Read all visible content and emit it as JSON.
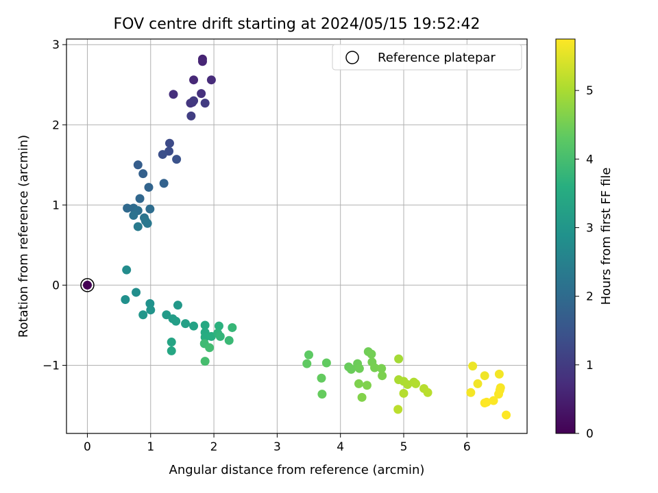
{
  "chart_data": {
    "type": "scatter",
    "title": "FOV centre drift starting at 2024/05/15 19:52:42",
    "xlabel": "Angular distance from reference (arcmin)",
    "ylabel": "Rotation from reference (arcmin)",
    "xlim": [
      -0.33,
      6.95
    ],
    "ylim": [
      -1.85,
      3.07
    ],
    "xticks": [
      "0",
      "1",
      "2",
      "3",
      "4",
      "5",
      "6"
    ],
    "yticks": [
      "−1",
      "0",
      "1",
      "2",
      "3"
    ],
    "grid": true,
    "colormap": "viridis",
    "colorbar": {
      "label": "Hours from first FF file",
      "range": [
        0,
        5.75
      ],
      "ticks": [
        "0",
        "1",
        "2",
        "3",
        "4",
        "5"
      ]
    },
    "legend": {
      "location": "top-right",
      "entries": [
        "Reference platepar"
      ]
    },
    "reference_point": {
      "x": 0,
      "y": 0,
      "t": 0
    },
    "points": [
      {
        "x": 1.82,
        "y": 2.82,
        "t": 0.55
      },
      {
        "x": 1.82,
        "y": 2.79,
        "t": 0.6
      },
      {
        "x": 1.68,
        "y": 2.56,
        "t": 0.65
      },
      {
        "x": 1.96,
        "y": 2.56,
        "t": 0.7
      },
      {
        "x": 1.36,
        "y": 2.38,
        "t": 0.75
      },
      {
        "x": 1.8,
        "y": 2.39,
        "t": 0.8
      },
      {
        "x": 1.66,
        "y": 2.28,
        "t": 0.85
      },
      {
        "x": 1.63,
        "y": 2.27,
        "t": 0.9
      },
      {
        "x": 1.68,
        "y": 2.3,
        "t": 0.95
      },
      {
        "x": 1.86,
        "y": 2.27,
        "t": 1.0
      },
      {
        "x": 1.64,
        "y": 2.11,
        "t": 1.05
      },
      {
        "x": 1.3,
        "y": 1.77,
        "t": 1.3
      },
      {
        "x": 1.29,
        "y": 1.67,
        "t": 1.35
      },
      {
        "x": 1.19,
        "y": 1.63,
        "t": 1.4
      },
      {
        "x": 1.41,
        "y": 1.57,
        "t": 1.45
      },
      {
        "x": 0.8,
        "y": 1.5,
        "t": 1.7
      },
      {
        "x": 0.88,
        "y": 1.39,
        "t": 1.75
      },
      {
        "x": 1.21,
        "y": 1.27,
        "t": 1.8
      },
      {
        "x": 0.97,
        "y": 1.22,
        "t": 1.85
      },
      {
        "x": 0.83,
        "y": 1.08,
        "t": 1.9
      },
      {
        "x": 0.63,
        "y": 0.96,
        "t": 1.95
      },
      {
        "x": 0.73,
        "y": 0.96,
        "t": 2.0
      },
      {
        "x": 0.99,
        "y": 0.95,
        "t": 2.05
      },
      {
        "x": 0.8,
        "y": 0.93,
        "t": 2.1
      },
      {
        "x": 0.73,
        "y": 0.87,
        "t": 2.15
      },
      {
        "x": 0.9,
        "y": 0.84,
        "t": 2.2
      },
      {
        "x": 0.92,
        "y": 0.8,
        "t": 2.25
      },
      {
        "x": 0.95,
        "y": 0.77,
        "t": 2.3
      },
      {
        "x": 0.8,
        "y": 0.73,
        "t": 2.35
      },
      {
        "x": 0.62,
        "y": 0.19,
        "t": 2.75
      },
      {
        "x": 0.77,
        "y": -0.09,
        "t": 2.8
      },
      {
        "x": 0.6,
        "y": -0.18,
        "t": 2.85
      },
      {
        "x": 0.99,
        "y": -0.23,
        "t": 2.9
      },
      {
        "x": 1.0,
        "y": -0.31,
        "t": 2.95
      },
      {
        "x": 0.88,
        "y": -0.37,
        "t": 3.0
      },
      {
        "x": 1.43,
        "y": -0.25,
        "t": 3.05
      },
      {
        "x": 1.25,
        "y": -0.37,
        "t": 3.1
      },
      {
        "x": 1.35,
        "y": -0.42,
        "t": 3.15
      },
      {
        "x": 1.4,
        "y": -0.45,
        "t": 3.2
      },
      {
        "x": 1.55,
        "y": -0.48,
        "t": 3.25
      },
      {
        "x": 1.68,
        "y": -0.51,
        "t": 3.3
      },
      {
        "x": 1.33,
        "y": -0.71,
        "t": 3.35
      },
      {
        "x": 1.33,
        "y": -0.82,
        "t": 3.4
      },
      {
        "x": 1.86,
        "y": -0.5,
        "t": 3.45
      },
      {
        "x": 1.86,
        "y": -0.59,
        "t": 3.5
      },
      {
        "x": 1.86,
        "y": -0.65,
        "t": 3.55
      },
      {
        "x": 1.96,
        "y": -0.64,
        "t": 3.6
      },
      {
        "x": 2.08,
        "y": -0.51,
        "t": 3.65
      },
      {
        "x": 2.06,
        "y": -0.6,
        "t": 3.7
      },
      {
        "x": 2.1,
        "y": -0.64,
        "t": 3.75
      },
      {
        "x": 2.29,
        "y": -0.53,
        "t": 3.8
      },
      {
        "x": 2.24,
        "y": -0.69,
        "t": 3.85
      },
      {
        "x": 1.85,
        "y": -0.73,
        "t": 3.9
      },
      {
        "x": 1.93,
        "y": -0.78,
        "t": 3.95
      },
      {
        "x": 1.86,
        "y": -0.95,
        "t": 4.0
      },
      {
        "x": 3.5,
        "y": -0.87,
        "t": 4.3
      },
      {
        "x": 3.47,
        "y": -0.98,
        "t": 4.32
      },
      {
        "x": 3.78,
        "y": -0.97,
        "t": 4.34
      },
      {
        "x": 3.7,
        "y": -1.16,
        "t": 4.36
      },
      {
        "x": 3.71,
        "y": -1.36,
        "t": 4.38
      },
      {
        "x": 4.13,
        "y": -1.02,
        "t": 4.4
      },
      {
        "x": 4.17,
        "y": -1.05,
        "t": 4.42
      },
      {
        "x": 4.27,
        "y": -0.98,
        "t": 4.44
      },
      {
        "x": 4.3,
        "y": -1.04,
        "t": 4.46
      },
      {
        "x": 4.44,
        "y": -0.83,
        "t": 4.48
      },
      {
        "x": 4.49,
        "y": -0.86,
        "t": 4.5
      },
      {
        "x": 4.5,
        "y": -0.96,
        "t": 4.52
      },
      {
        "x": 4.54,
        "y": -1.03,
        "t": 4.54
      },
      {
        "x": 4.65,
        "y": -1.04,
        "t": 4.56
      },
      {
        "x": 4.66,
        "y": -1.13,
        "t": 4.58
      },
      {
        "x": 4.29,
        "y": -1.23,
        "t": 4.6
      },
      {
        "x": 4.42,
        "y": -1.25,
        "t": 4.62
      },
      {
        "x": 4.34,
        "y": -1.4,
        "t": 4.64
      },
      {
        "x": 4.92,
        "y": -0.92,
        "t": 4.95
      },
      {
        "x": 4.92,
        "y": -1.18,
        "t": 5.0
      },
      {
        "x": 5.0,
        "y": -1.2,
        "t": 5.02
      },
      {
        "x": 5.06,
        "y": -1.24,
        "t": 5.04
      },
      {
        "x": 5.16,
        "y": -1.21,
        "t": 5.06
      },
      {
        "x": 5.19,
        "y": -1.23,
        "t": 5.08
      },
      {
        "x": 5.0,
        "y": -1.35,
        "t": 5.1
      },
      {
        "x": 5.32,
        "y": -1.29,
        "t": 5.12
      },
      {
        "x": 5.38,
        "y": -1.34,
        "t": 5.14
      },
      {
        "x": 4.91,
        "y": -1.55,
        "t": 5.16
      },
      {
        "x": 6.09,
        "y": -1.01,
        "t": 5.6
      },
      {
        "x": 6.28,
        "y": -1.13,
        "t": 5.62
      },
      {
        "x": 6.17,
        "y": -1.23,
        "t": 5.64
      },
      {
        "x": 6.51,
        "y": -1.11,
        "t": 5.66
      },
      {
        "x": 6.06,
        "y": -1.34,
        "t": 5.68
      },
      {
        "x": 6.53,
        "y": -1.28,
        "t": 5.7
      },
      {
        "x": 6.52,
        "y": -1.31,
        "t": 5.71
      },
      {
        "x": 6.5,
        "y": -1.36,
        "t": 5.72
      },
      {
        "x": 6.42,
        "y": -1.44,
        "t": 5.73
      },
      {
        "x": 6.28,
        "y": -1.47,
        "t": 5.74
      },
      {
        "x": 6.31,
        "y": -1.46,
        "t": 5.75
      },
      {
        "x": 6.62,
        "y": -1.62,
        "t": 5.75
      }
    ]
  }
}
